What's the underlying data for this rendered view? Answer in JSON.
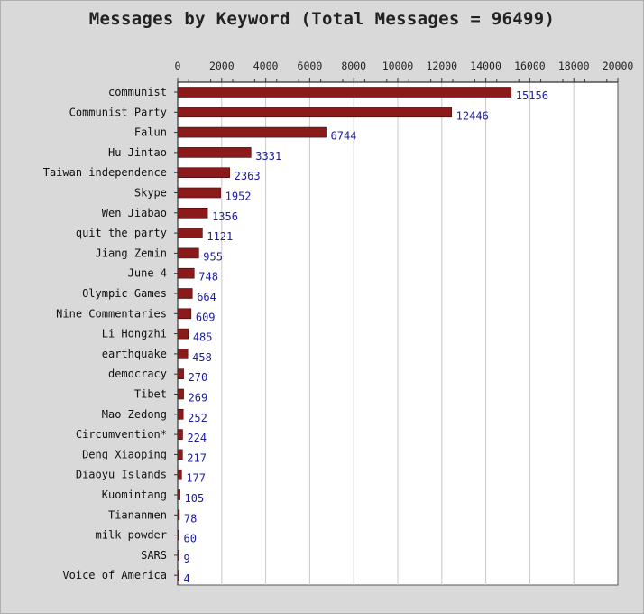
{
  "chart_data": {
    "type": "bar",
    "orientation": "horizontal",
    "title": "Messages by Keyword (Total Messages = 96499)",
    "xlabel": "",
    "ylabel": "",
    "xlim": [
      0,
      20000
    ],
    "xticks": [
      0,
      2000,
      4000,
      6000,
      8000,
      10000,
      12000,
      14000,
      16000,
      18000,
      20000
    ],
    "x_axis_position": "top",
    "grid": "vertical",
    "bar_color": "#8b1a1a",
    "label_color": "#1c1c9c",
    "categories": [
      "communist",
      "Communist Party",
      "Falun",
      "Hu Jintao",
      "Taiwan independence",
      "Skype",
      "Wen Jiabao",
      "quit the party",
      "Jiang Zemin",
      "June 4",
      "Olympic Games",
      "Nine Commentaries",
      "Li Hongzhi",
      "earthquake",
      "democracy",
      "Tibet",
      "Mao Zedong",
      "Circumvention*",
      "Deng Xiaoping",
      "Diaoyu Islands",
      "Kuomintang",
      "Tiananmen",
      "milk powder",
      "SARS",
      "Voice of America"
    ],
    "values": [
      15156,
      12446,
      6744,
      3331,
      2363,
      1952,
      1356,
      1121,
      955,
      748,
      664,
      609,
      485,
      458,
      270,
      269,
      252,
      224,
      217,
      177,
      105,
      78,
      60,
      9,
      4
    ]
  }
}
